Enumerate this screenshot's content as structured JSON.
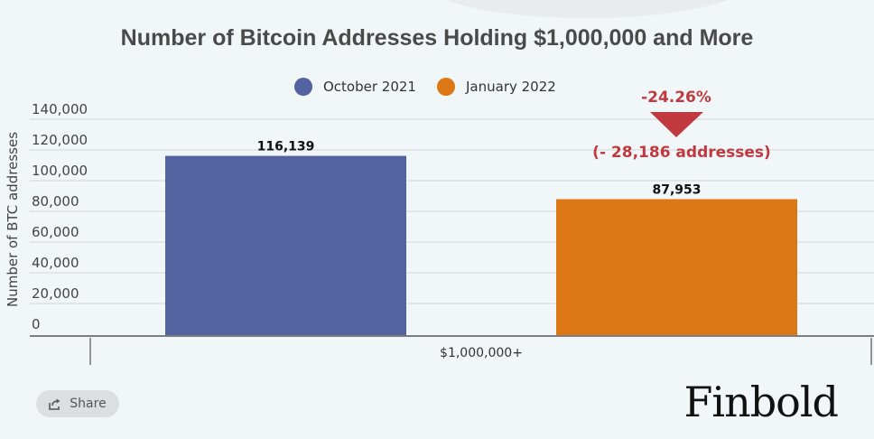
{
  "chart_data": {
    "type": "bar",
    "title": "Number of Bitcoin Addresses Holding $1,000,000 and More",
    "categories": [
      "$1,000,000+"
    ],
    "series": [
      {
        "name": "October 2021",
        "color": "#5263a0",
        "values": [
          116139
        ],
        "label": "116,139"
      },
      {
        "name": "January 2022",
        "color": "#dd7614",
        "values": [
          87953
        ],
        "label": "87,953"
      }
    ],
    "ylabel": "Number of BTC addresses",
    "ylim": [
      0,
      140000
    ],
    "yticks": [
      0,
      20000,
      40000,
      60000,
      80000,
      100000,
      120000,
      140000
    ],
    "ytick_labels": [
      "0",
      "20,000",
      "40,000",
      "60,000",
      "80,000",
      "100,000",
      "120,000",
      "140,000"
    ],
    "grid": true,
    "legend_position": "top-center",
    "annotation": {
      "percent": "-24.26%",
      "detail": "(- 28,186 addresses)",
      "color": "#c0393f"
    }
  },
  "share": {
    "label": "Share",
    "icon": "share-icon"
  },
  "brand": {
    "name": "Finbold"
  }
}
